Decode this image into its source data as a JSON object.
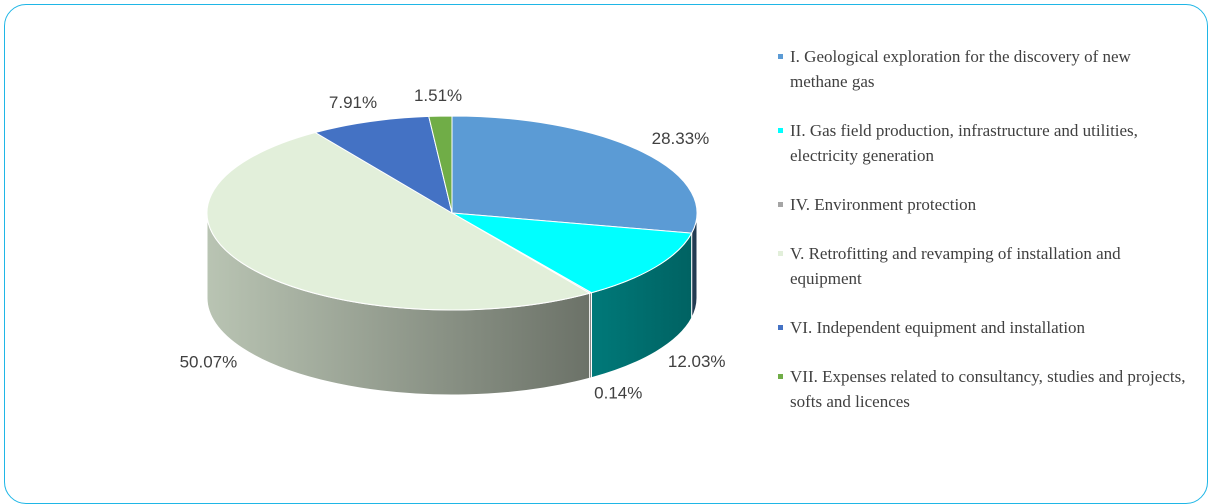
{
  "chart_data": {
    "type": "pie",
    "categories": [
      "I. Geological exploration for the discovery of new methane gas",
      "II. Gas field production, infrastructure and utilities, electricity generation",
      "IV. Environment protection",
      "V. Retrofitting and revamping of installation and equipment",
      "VI. Independent equipment and installation",
      "VII. Expenses related to consultancy, studies and projects, softs and licences"
    ],
    "values": [
      28.33,
      12.03,
      0.14,
      50.07,
      7.91,
      1.51
    ],
    "value_labels": [
      "28.33%",
      "12.03%",
      "0.14%",
      "50.07%",
      "7.91%",
      "1.51%"
    ],
    "colors": [
      "#5b9bd5",
      "#00ffff",
      "#a5a5a5",
      "#e2efda",
      "#4472c4",
      "#70ad47"
    ],
    "legend": "right"
  }
}
